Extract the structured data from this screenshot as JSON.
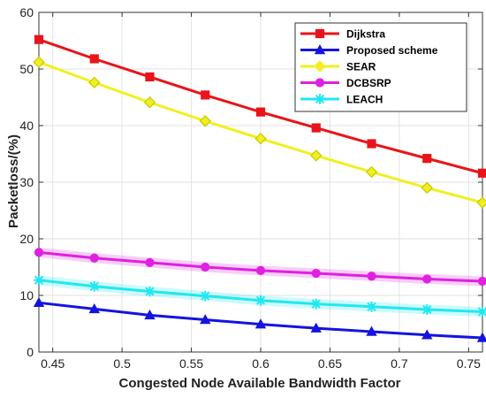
{
  "chart_data": {
    "type": "line",
    "xlabel": "Congested Node Available Bandwidth Factor",
    "ylabel": "Packetloss/(%)",
    "xlim": [
      0.44,
      0.76
    ],
    "ylim": [
      0,
      60
    ],
    "xticks": [
      0.45,
      0.5,
      0.55,
      0.6,
      0.65,
      0.7,
      0.75
    ],
    "xtick_labels": [
      "0.45",
      "0.5",
      "0.55",
      "0.6",
      "0.65",
      "0.7",
      "0.75"
    ],
    "yticks": [
      0,
      10,
      20,
      30,
      40,
      50,
      60
    ],
    "ytick_labels": [
      "0",
      "10",
      "20",
      "30",
      "40",
      "50",
      "60"
    ],
    "grid": true,
    "legend_position": "top-right",
    "x": [
      0.44,
      0.48,
      0.52,
      0.56,
      0.6,
      0.64,
      0.68,
      0.72,
      0.76
    ],
    "series": [
      {
        "name": "Dijkstra",
        "color": "#e8141a",
        "marker": "square",
        "values": [
          55.2,
          51.8,
          48.6,
          45.4,
          42.4,
          39.6,
          36.8,
          34.2,
          31.6
        ]
      },
      {
        "name": "Proposed scheme",
        "color": "#1414e0",
        "marker": "triangle",
        "values": [
          8.7,
          7.6,
          6.5,
          5.7,
          4.9,
          4.2,
          3.6,
          3.0,
          2.5
        ]
      },
      {
        "name": "SEAR",
        "color": "#f0f020",
        "marker": "diamond",
        "values": [
          51.2,
          47.6,
          44.1,
          40.8,
          37.7,
          34.7,
          31.8,
          29.0,
          26.4
        ]
      },
      {
        "name": "DCBSRP",
        "color": "#e020e0",
        "marker": "circle",
        "values": [
          17.6,
          16.6,
          15.8,
          15.0,
          14.4,
          13.9,
          13.4,
          12.9,
          12.5
        ]
      },
      {
        "name": "LEACH",
        "color": "#20e8f0",
        "marker": "star",
        "values": [
          12.7,
          11.6,
          10.7,
          9.9,
          9.1,
          8.5,
          8.0,
          7.5,
          7.1
        ]
      }
    ]
  }
}
